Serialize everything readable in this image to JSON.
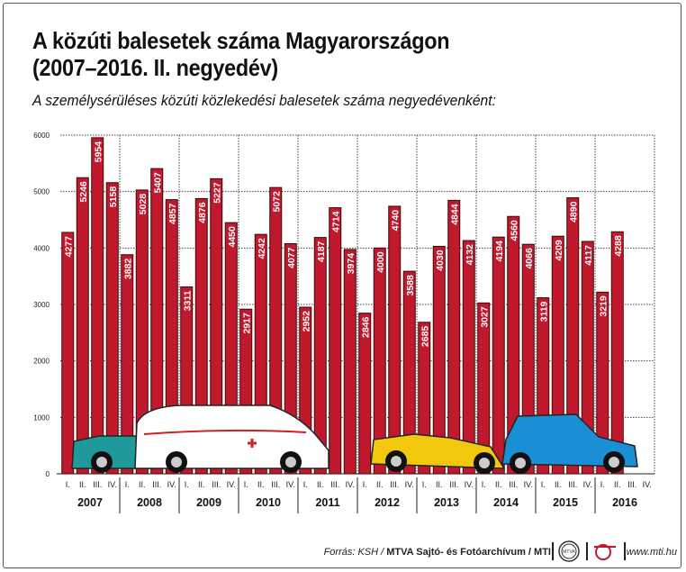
{
  "title_line1": "A közúti balesetek száma Magyarországon",
  "title_line2": "(2007–2016. II. negyedév)",
  "subtitle": "A személysérüléses közúti közlekedési balesetek száma negyedévenként:",
  "chart_data": {
    "type": "bar",
    "title": "A közúti balesetek száma Magyarországon (2007–2016. II. negyedév)",
    "subtitle": "A személysérüléses közúti közlekedési balesetek száma negyedévenként:",
    "years": [
      "2007",
      "2008",
      "2009",
      "2010",
      "2011",
      "2012",
      "2013",
      "2014",
      "2015",
      "2016"
    ],
    "quarters": [
      "I.",
      "II.",
      "III.",
      "IV."
    ],
    "values": [
      [
        4277,
        5246,
        5954,
        5158
      ],
      [
        3882,
        5028,
        5407,
        4857
      ],
      [
        3311,
        4876,
        5227,
        4450
      ],
      [
        2917,
        4242,
        5072,
        4077
      ],
      [
        2952,
        4187,
        4714,
        3974
      ],
      [
        2846,
        4000,
        4740,
        3588
      ],
      [
        2685,
        4030,
        4844,
        4132
      ],
      [
        3027,
        4194,
        4560,
        4066
      ],
      [
        3119,
        4209,
        4890,
        4117
      ],
      [
        3219,
        4288,
        null,
        null
      ]
    ],
    "yticks": [
      0,
      1000,
      2000,
      3000,
      4000,
      5000,
      6000
    ],
    "ylim": [
      0,
      6000
    ],
    "grid": true,
    "bar_color": "#c0182c",
    "xlabel": "",
    "ylabel": ""
  },
  "footer": {
    "source_prefix": "Forrás: KSH / ",
    "source_bold": "MTVA Sajtó- és Fotóarchívum / MTI",
    "logo_text": "MTVA",
    "url": "www.mti.hu"
  }
}
